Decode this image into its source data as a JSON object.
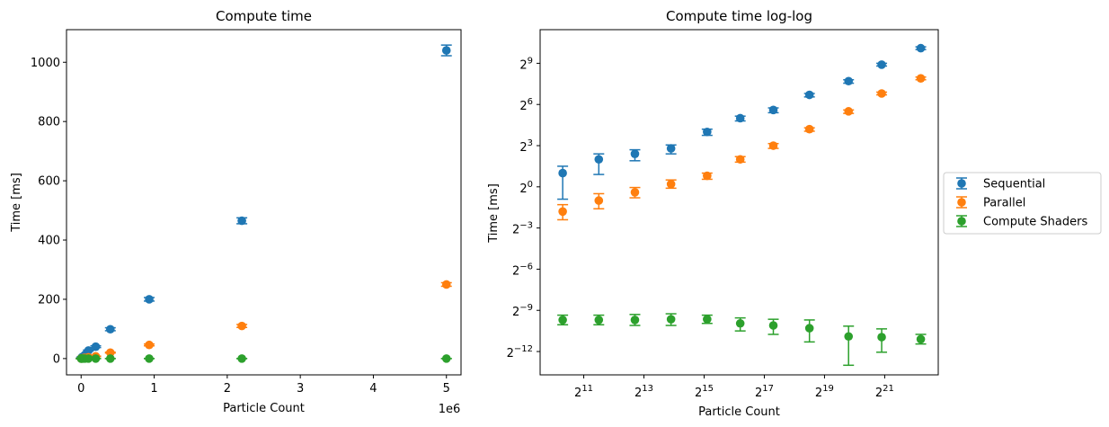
{
  "chart_data": [
    {
      "type": "scatter",
      "title": "Compute time",
      "xlabel": "Particle Count",
      "ylabel": "Time [ms]",
      "x_offset_label": "1e6",
      "xlim": [
        -0.2,
        5.2
      ],
      "ylim": [
        -55,
        1110
      ],
      "x_ticks": [
        0,
        1,
        2,
        3,
        4,
        5
      ],
      "x_tick_labels": [
        "0",
        "1",
        "2",
        "3",
        "4",
        "5"
      ],
      "y_ticks": [
        0,
        200,
        400,
        600,
        800,
        1000
      ],
      "y_tick_labels": [
        "0",
        "200",
        "400",
        "600",
        "800",
        "1000"
      ],
      "x": [
        0.001,
        0.0032,
        0.0109,
        0.0255,
        0.0503,
        0.1,
        0.2,
        0.4,
        0.932,
        2.2,
        5.0
      ],
      "series": [
        {
          "name": "Sequential",
          "color": "#1f77b4",
          "values": [
            0.5,
            1.4,
            4.6,
            5.2,
            12,
            27,
            40,
            99,
            200,
            465,
            1040
          ],
          "errors": [
            0.5,
            0.6,
            0.9,
            0.8,
            1,
            2,
            3,
            5,
            6,
            10,
            18
          ]
        },
        {
          "name": "Parallel",
          "color": "#ff7f0e",
          "values": [
            0.2,
            0.35,
            0.6,
            1.2,
            2.4,
            4.5,
            7.5,
            20,
            46,
            110,
            250
          ],
          "errors": [
            0.1,
            0.1,
            0.1,
            0.2,
            0.3,
            0.5,
            0.8,
            1.5,
            3,
            5,
            6
          ]
        },
        {
          "name": "Compute Shaders",
          "color": "#2ca02c",
          "values": [
            0.0012,
            0.0012,
            0.0012,
            0.0013,
            0.0013,
            0.0011,
            0.0011,
            0.001,
            0.0006,
            0.0005,
            0.0004
          ],
          "errors": [
            0.0002,
            0.0002,
            0.0003,
            0.0003,
            0.0002,
            0.0003,
            0.0003,
            0.0005,
            0.0004,
            0.0003,
            0.0001
          ]
        }
      ],
      "grid": false
    },
    {
      "type": "scatter",
      "title": "Compute time log-log",
      "xlabel": "Particle Count",
      "ylabel": "Time [ms]",
      "log_base": 2,
      "xlim_log2": [
        9.55,
        22.78
      ],
      "ylim_log2": [
        -13.7,
        11.45
      ],
      "x_ticks_log2": [
        11,
        13,
        15,
        17,
        19,
        21
      ],
      "y_ticks_log2": [
        9,
        6,
        3,
        0,
        -3,
        -6,
        -9,
        -12
      ],
      "x_log2": [
        10.3,
        11.5,
        12.7,
        13.9,
        15.1,
        16.2,
        17.3,
        18.5,
        19.8,
        20.9,
        22.2
      ],
      "series": [
        {
          "name": "Sequential",
          "color": "#1f77b4",
          "values_log2": [
            1.0,
            2.0,
            2.4,
            2.8,
            4.0,
            5.0,
            5.6,
            6.7,
            7.7,
            8.9,
            10.1
          ],
          "err_low_log2": [
            1.9,
            1.1,
            0.5,
            0.4,
            0.25,
            0.2,
            0.2,
            0.15,
            0.15,
            0.1,
            0.1
          ],
          "err_high_log2": [
            0.5,
            0.4,
            0.3,
            0.25,
            0.2,
            0.15,
            0.15,
            0.1,
            0.1,
            0.1,
            0.1
          ]
        },
        {
          "name": "Parallel",
          "color": "#ff7f0e",
          "values_log2": [
            -1.8,
            -1.0,
            -0.4,
            0.2,
            0.8,
            2.0,
            3.0,
            4.2,
            5.5,
            6.8,
            7.9
          ],
          "err_low_log2": [
            0.6,
            0.6,
            0.4,
            0.3,
            0.25,
            0.2,
            0.2,
            0.15,
            0.15,
            0.1,
            0.1
          ],
          "err_high_log2": [
            0.5,
            0.5,
            0.35,
            0.3,
            0.2,
            0.2,
            0.15,
            0.1,
            0.1,
            0.1,
            0.1
          ]
        },
        {
          "name": "Compute Shaders",
          "color": "#2ca02c",
          "values_log2": [
            -9.7,
            -9.7,
            -9.7,
            -9.65,
            -9.65,
            -9.95,
            -10.1,
            -10.3,
            -10.9,
            -10.95,
            -11.1
          ],
          "err_low_log2": [
            0.35,
            0.35,
            0.4,
            0.45,
            0.3,
            0.55,
            0.65,
            1.0,
            2.1,
            1.1,
            0.35
          ],
          "err_high_log2": [
            0.35,
            0.35,
            0.4,
            0.4,
            0.3,
            0.4,
            0.45,
            0.6,
            0.75,
            0.6,
            0.35
          ]
        }
      ],
      "legend": {
        "placement": "right-outside",
        "entries": [
          "Sequential",
          "Parallel",
          "Compute Shaders"
        ]
      },
      "grid": false
    }
  ]
}
